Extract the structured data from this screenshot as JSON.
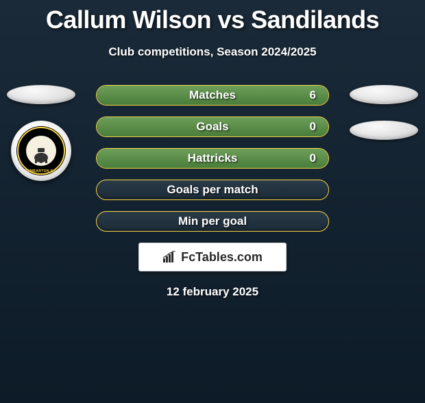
{
  "title": "Callum Wilson vs Sandilands",
  "subtitle": "Club competitions, Season 2024/2025",
  "date": "12 february 2025",
  "branding": "FcTables.com",
  "team_left": {
    "logo_text": "DUMBARTON F.C."
  },
  "colors": {
    "pill_border": "#f7d548",
    "pill_fill_top": "#6d9f5a",
    "pill_fill_bottom": "#4a7d3a",
    "bg_top": "#1a2a38",
    "bg_bottom": "#0d1b28"
  },
  "stats": {
    "rows": [
      {
        "label": "Matches",
        "value": "6",
        "filled": true
      },
      {
        "label": "Goals",
        "value": "0",
        "filled": true
      },
      {
        "label": "Hattricks",
        "value": "0",
        "filled": true
      },
      {
        "label": "Goals per match",
        "value": "",
        "filled": false
      },
      {
        "label": "Min per goal",
        "value": "",
        "filled": false
      }
    ]
  }
}
